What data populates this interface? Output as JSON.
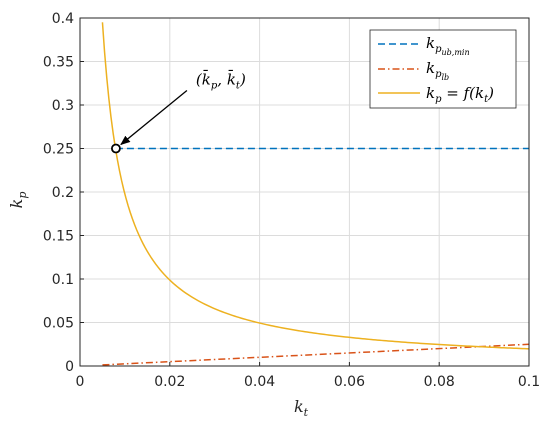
{
  "chart_data": {
    "type": "line",
    "title": "",
    "xlabel": "k_t",
    "ylabel": "k_p",
    "xlim": [
      0,
      0.1
    ],
    "ylim": [
      0,
      0.4
    ],
    "x_ticks": [
      "0",
      "0.02",
      "0.04",
      "0.06",
      "0.08",
      "0.1"
    ],
    "y_ticks": [
      "0",
      "0.05",
      "0.1",
      "0.15",
      "0.2",
      "0.25",
      "0.3",
      "0.35",
      "0.4"
    ],
    "grid": true,
    "legend_position": "top-right",
    "series": [
      {
        "name": "k_p_ub,min",
        "style": "dashed",
        "color": "#0072BD",
        "x": [
          0.008,
          0.1
        ],
        "y": [
          0.25,
          0.25
        ]
      },
      {
        "name": "k_p_lb",
        "style": "dash-dot",
        "color": "#D95319",
        "x": [
          0.005,
          0.1
        ],
        "y": [
          0.00125,
          0.025
        ]
      },
      {
        "name": "k_p = f(k_t)",
        "style": "solid",
        "color": "#EDB120",
        "x": [
          0.005,
          0.006,
          0.007,
          0.008,
          0.01,
          0.012,
          0.015,
          0.02,
          0.03,
          0.04,
          0.05,
          0.06,
          0.07,
          0.08,
          0.09,
          0.1
        ],
        "y": [
          0.395,
          0.333,
          0.286,
          0.25,
          0.2,
          0.167,
          0.133,
          0.1,
          0.067,
          0.05,
          0.04,
          0.033,
          0.029,
          0.025,
          0.022,
          0.02
        ]
      }
    ],
    "annotation": {
      "text": "(k̄_p, k̄_t)",
      "point": {
        "x": 0.008,
        "y": 0.25
      }
    }
  }
}
